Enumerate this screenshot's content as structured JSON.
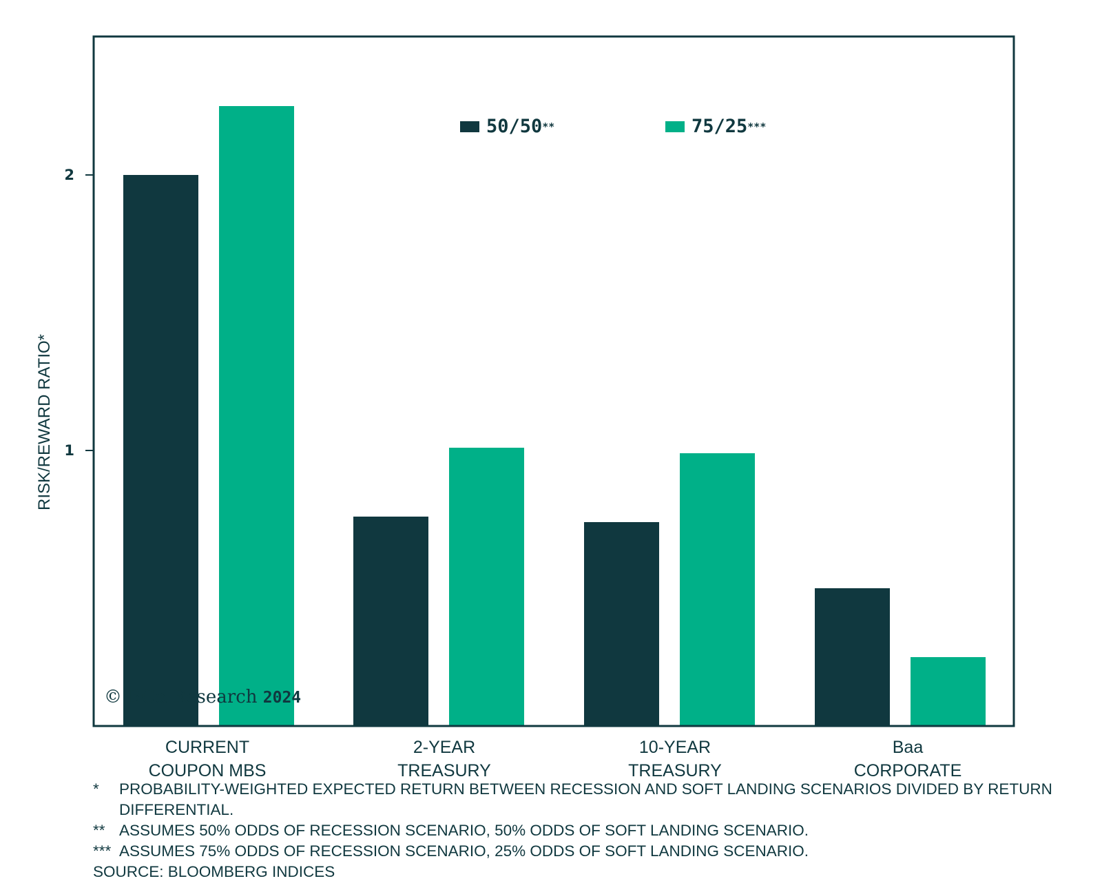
{
  "colors": {
    "series_50_50": "#10383f",
    "series_75_25": "#00b088",
    "frame": "#10383f",
    "text": "#10383f"
  },
  "watermark": {
    "brand": "© BCα Research",
    "year": "2024"
  },
  "footnotes": [
    {
      "mark": "*",
      "text": "PROBABILITY-WEIGHTED EXPECTED RETURN BETWEEN RECESSION AND SOFT LANDING SCENARIOS DIVIDED BY RETURN DIFFERENTIAL."
    },
    {
      "mark": "**",
      "text": "ASSUMES 50% ODDS OF RECESSION SCENARIO, 50% ODDS OF SOFT LANDING SCENARIO."
    },
    {
      "mark": "***",
      "text": "ASSUMES 75% ODDS OF RECESSION SCENARIO, 25% ODDS OF SOFT LANDING SCENARIO."
    }
  ],
  "source": "SOURCE: BLOOMBERG INDICES",
  "chart_data": {
    "type": "bar",
    "title": "",
    "xlabel": "",
    "ylabel": "RISK/REWARD RATIO*",
    "ylim": [
      0,
      2.5
    ],
    "yticks": [
      "1",
      "2"
    ],
    "grid": false,
    "legend_position": "top-center",
    "categories": [
      [
        "CURRENT",
        "COUPON MBS"
      ],
      [
        "2-YEAR",
        "TREASURY"
      ],
      [
        "10-YEAR",
        "TREASURY"
      ],
      [
        "Baa",
        "CORPORATE"
      ]
    ],
    "series": [
      {
        "name": "50/50",
        "marker": "**",
        "values": [
          2.0,
          0.76,
          0.74,
          0.5
        ]
      },
      {
        "name": "75/25",
        "marker": "***",
        "values": [
          2.25,
          1.01,
          0.99,
          0.25
        ]
      }
    ]
  }
}
